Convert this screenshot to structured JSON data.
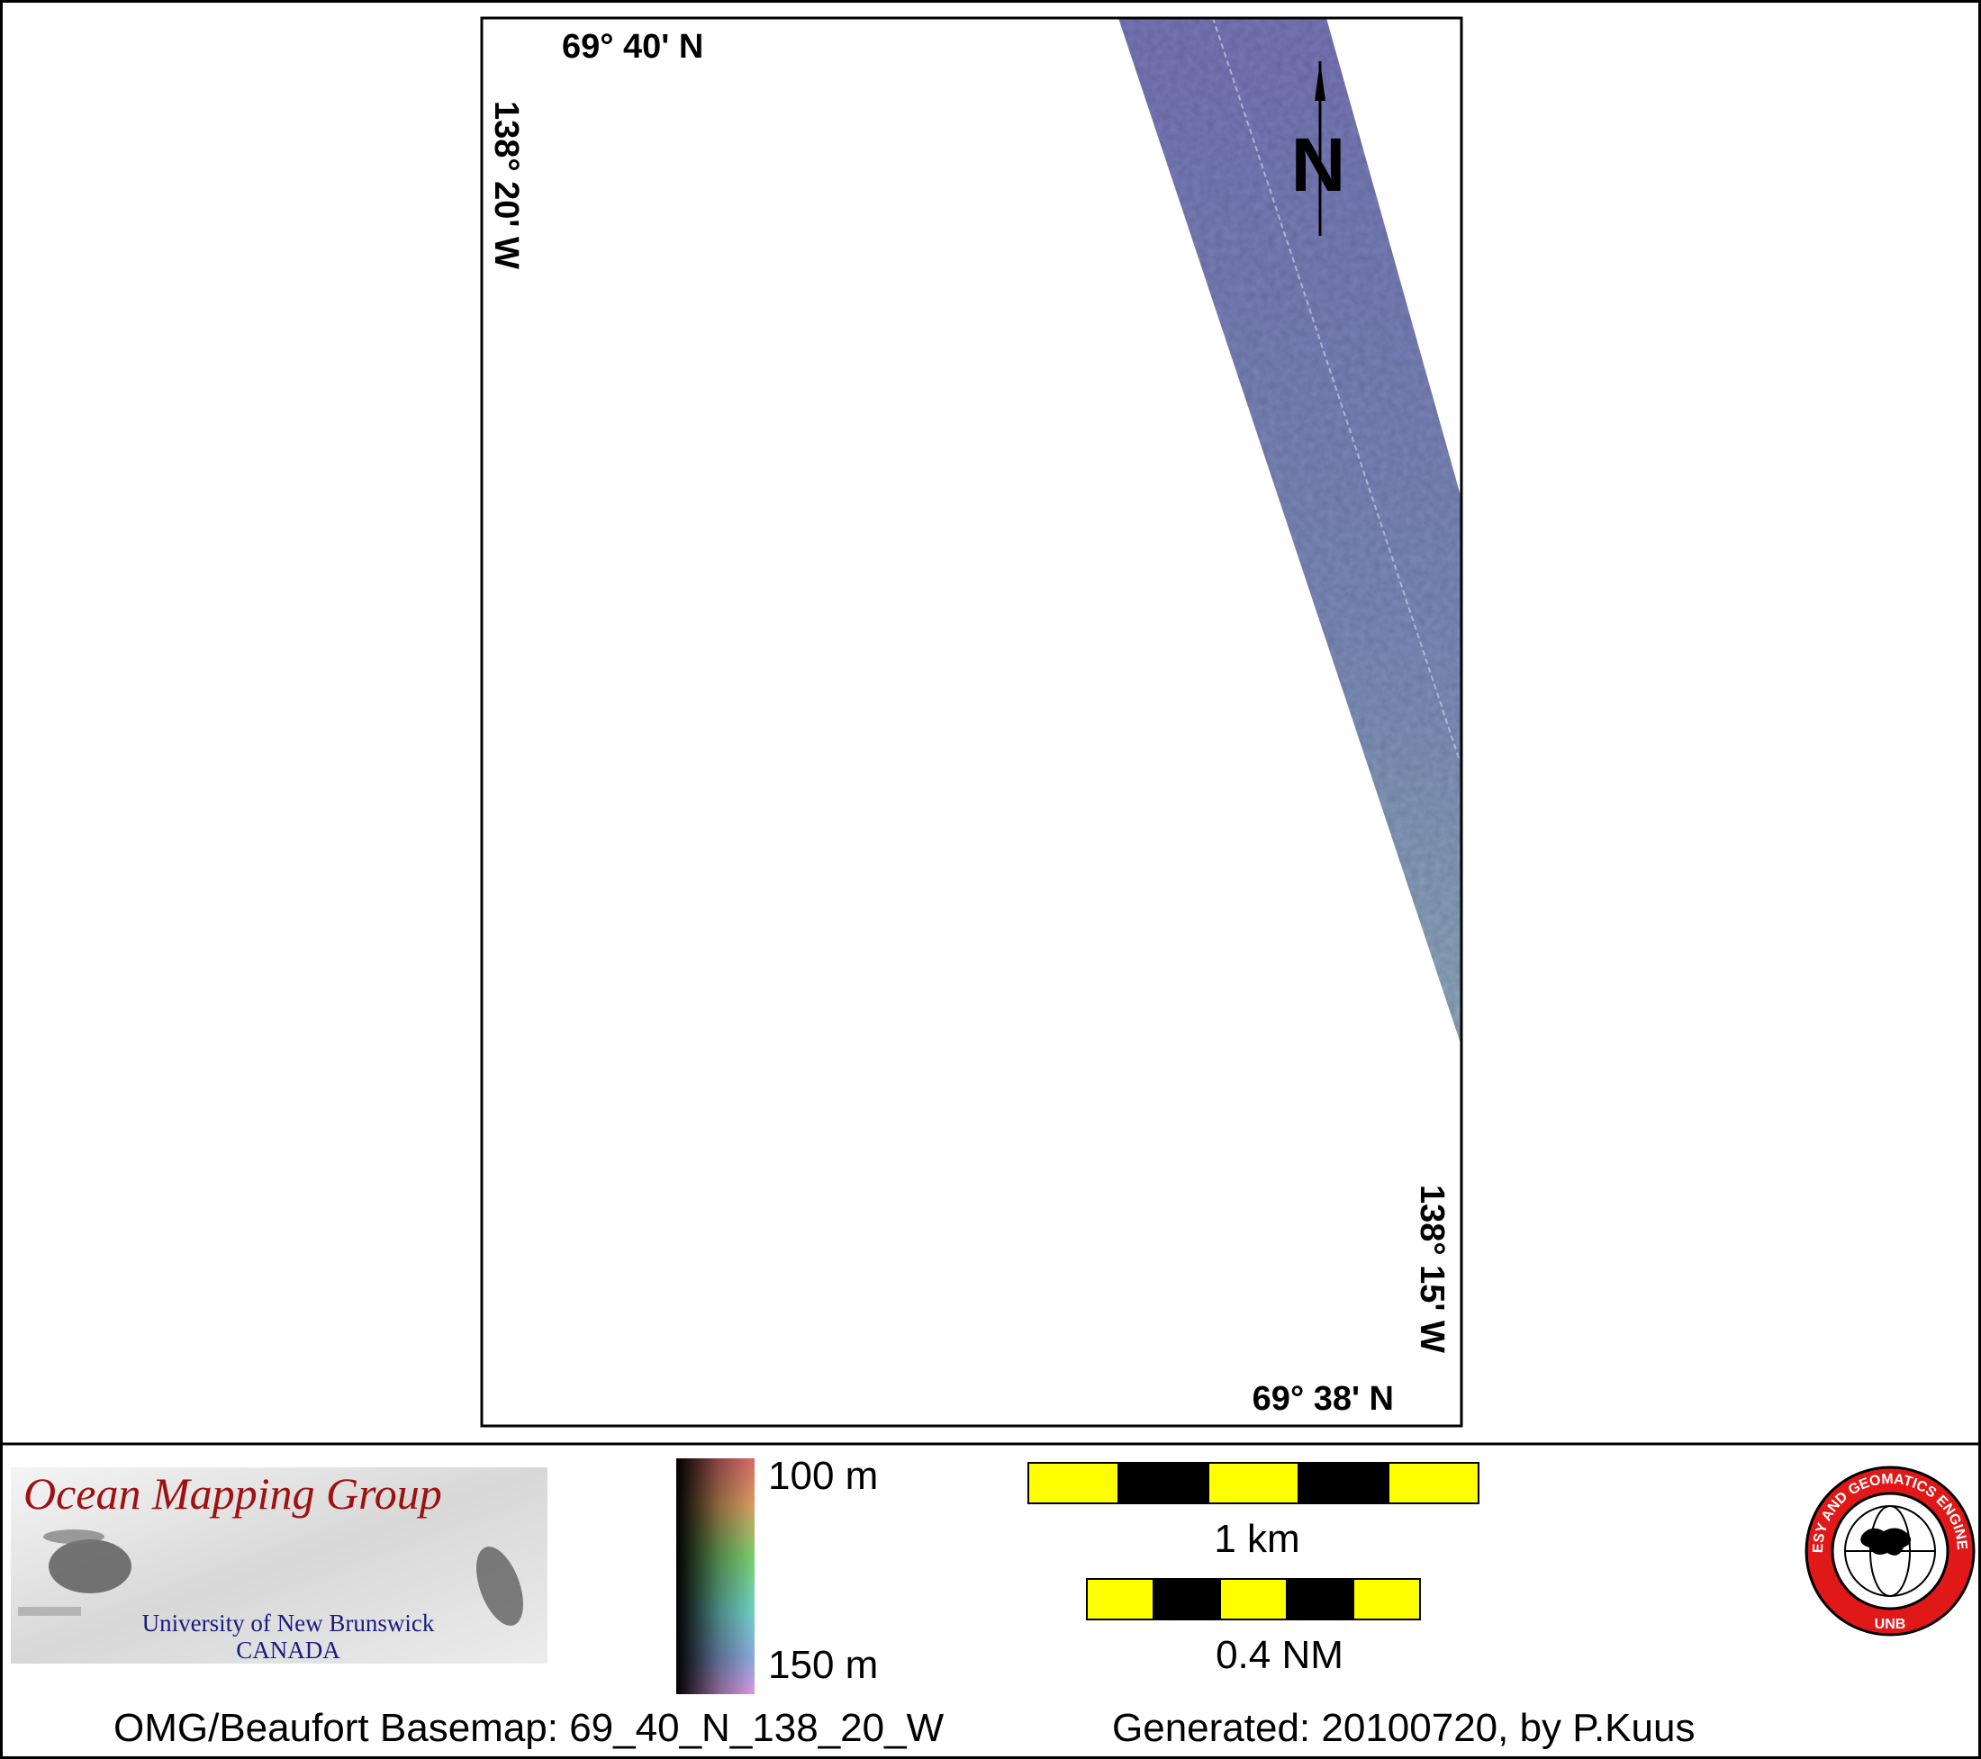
{
  "map": {
    "corner_labels": {
      "top_latitude": "69° 40' N",
      "left_longitude": "138° 20' W",
      "right_longitude": "138° 15' W",
      "bottom_latitude": "69° 38' N"
    },
    "north_arrow": "N"
  },
  "legend": {
    "logo": {
      "title": "Ocean Mapping Group",
      "university": "University of New Brunswick",
      "country": "CANADA"
    },
    "depth_scale": {
      "top": "100 m",
      "bottom": "150 m"
    },
    "scale_bars": [
      "1 km",
      "0.4 NM"
    ],
    "seal": {
      "ring_text": "GEODESY AND GEOMATICS ENGINEERING",
      "bottom_text": "UNB"
    }
  },
  "footer": {
    "basemap": "OMG/Beaufort Basemap: 69_40_N_138_20_W",
    "generated": "Generated: 20100720, by P.Kuus"
  }
}
